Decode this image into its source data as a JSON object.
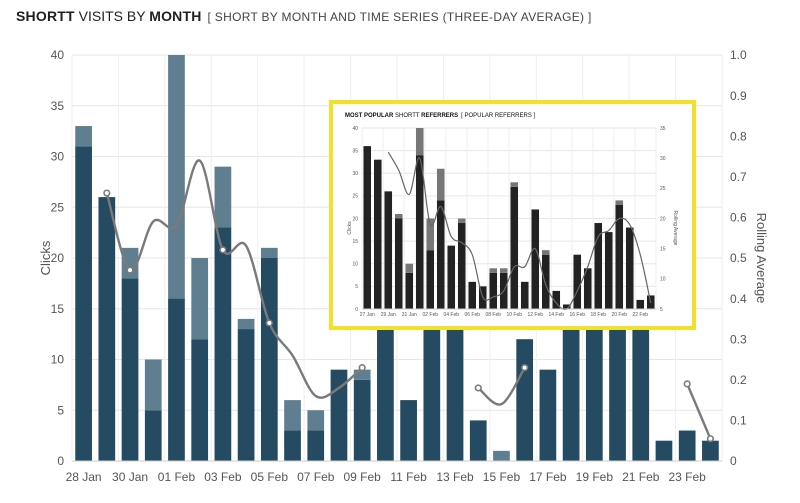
{
  "header": {
    "bold1": "SHORTT",
    "normal": " VISITS BY ",
    "bold2": "MONTH",
    "subtitle": "[ SHORT BY MONTH AND TIME SERIES (THREE-DAY AVERAGE) ]"
  },
  "chart_data": [
    {
      "type": "bar",
      "stacked": true,
      "categories": [
        "28 Jan",
        "29 Jan",
        "30 Jan",
        "31 Jan",
        "01 Feb",
        "02 Feb",
        "03 Feb",
        "04 Feb",
        "05 Feb",
        "06 Feb",
        "07 Feb",
        "08 Feb",
        "09 Feb",
        "10 Feb",
        "11 Feb",
        "12 Feb",
        "13 Feb",
        "14 Feb",
        "15 Feb",
        "16 Feb",
        "17 Feb",
        "18 Feb",
        "19 Feb",
        "20 Feb",
        "21 Feb",
        "22 Feb",
        "23 Feb",
        "24 Feb"
      ],
      "x_tick_labels": [
        "28 Jan",
        "30 Jan",
        "01 Feb",
        "03 Feb",
        "05 Feb",
        "07 Feb",
        "09 Feb",
        "11 Feb",
        "13 Feb",
        "15 Feb",
        "17 Feb",
        "19 Feb",
        "21 Feb",
        "23 Feb"
      ],
      "series": [
        {
          "values": [
            31,
            26,
            18,
            5,
            16,
            12,
            23,
            13,
            20,
            3,
            3,
            9,
            8,
            14,
            6,
            14,
            14,
            4,
            0,
            12,
            9,
            15,
            14,
            14,
            14,
            2,
            3,
            2
          ],
          "color": "#254b62"
        },
        {
          "values": [
            2,
            0,
            3,
            5,
            24,
            8,
            6,
            1,
            1,
            3,
            2,
            0,
            1,
            0,
            0,
            0,
            0,
            0,
            1,
            0,
            0,
            0,
            0,
            0,
            0,
            0,
            0,
            0
          ],
          "color": "#5f7f91"
        }
      ],
      "line_series": {
        "values": [
          null,
          0.66,
          0.47,
          0.59,
          0.58,
          0.74,
          0.52,
          0.53,
          0.34,
          0.26,
          0.16,
          0.18,
          0.23,
          null,
          null,
          null,
          null,
          0.18,
          0.14,
          0.23,
          null,
          null,
          null,
          null,
          null,
          null,
          0.19,
          0.055
        ],
        "color": "#7a7a7a"
      },
      "ylabel": "Clicks",
      "y2label": "Rolling Average",
      "ylim": [
        0,
        40
      ],
      "y2lim": [
        0,
        1.0
      ],
      "y_ticks": [
        0,
        5,
        10,
        15,
        20,
        25,
        30,
        35,
        40
      ],
      "y2_ticks": [
        "0",
        "0.1",
        "0.2",
        "0.3",
        "0.4",
        "0.5",
        "0.6",
        "0.7",
        "0.8",
        "0.9",
        "1.0"
      ],
      "grid": true
    },
    {
      "type": "bar",
      "stacked": true,
      "title_bold1": "MOST POPULAR",
      "title_normal": " SHORTT ",
      "title_bold2": "REFERRERS",
      "title_sub": "[ POPULAR REFERRERS ]",
      "categories": [
        "27 Jan",
        "28 Jan",
        "29 Jan",
        "30 Jan",
        "31 Jan",
        "01 Feb",
        "02 Feb",
        "03 Feb",
        "04 Feb",
        "05 Feb",
        "06 Feb",
        "07 Feb",
        "08 Feb",
        "09 Feb",
        "10 Feb",
        "11 Feb",
        "12 Feb",
        "13 Feb",
        "14 Feb",
        "15 Feb",
        "16 Feb",
        "17 Feb",
        "18 Feb",
        "19 Feb",
        "20 Feb",
        "21 Feb",
        "22 Feb",
        "23 Feb"
      ],
      "x_tick_labels": [
        "27 Jan",
        "29 Jan",
        "31 Jan",
        "02 Feb",
        "04 Feb",
        "06 Feb",
        "08 Feb",
        "10 Feb",
        "12 Feb",
        "14 Feb",
        "16 Feb",
        "18 Feb",
        "20 Feb",
        "22 Feb"
      ],
      "series": [
        {
          "values": [
            36,
            33,
            26,
            20,
            8,
            34,
            13,
            24,
            14,
            19,
            6,
            5,
            8,
            8,
            27,
            6,
            22,
            12,
            4,
            1,
            12,
            9,
            19,
            17,
            23,
            18,
            2,
            3
          ],
          "color": "#222222"
        },
        {
          "values": [
            0,
            0,
            0,
            1,
            2,
            6,
            7,
            7,
            0,
            1,
            0,
            0,
            1,
            1,
            1,
            0,
            0,
            1,
            0,
            0,
            0,
            0,
            0,
            0,
            1,
            0,
            0,
            0
          ],
          "color": "#777777"
        }
      ],
      "line_series": {
        "values": [
          null,
          null,
          31,
          28,
          24,
          30,
          19,
          22,
          17,
          16,
          14,
          7,
          7,
          8,
          12,
          12,
          15,
          9,
          6,
          5,
          8,
          12,
          17,
          18,
          20,
          19,
          14,
          6
        ],
        "color": "#666666"
      },
      "ylabel": "Clicks",
      "y2label": "Rolling Average",
      "ylim": [
        0,
        40
      ],
      "y2lim": [
        5,
        35
      ],
      "y_ticks": [
        0,
        5,
        10,
        15,
        20,
        25,
        30,
        35,
        40
      ],
      "y2_ticks": [
        5,
        10,
        15,
        20,
        25,
        30,
        35
      ]
    }
  ]
}
